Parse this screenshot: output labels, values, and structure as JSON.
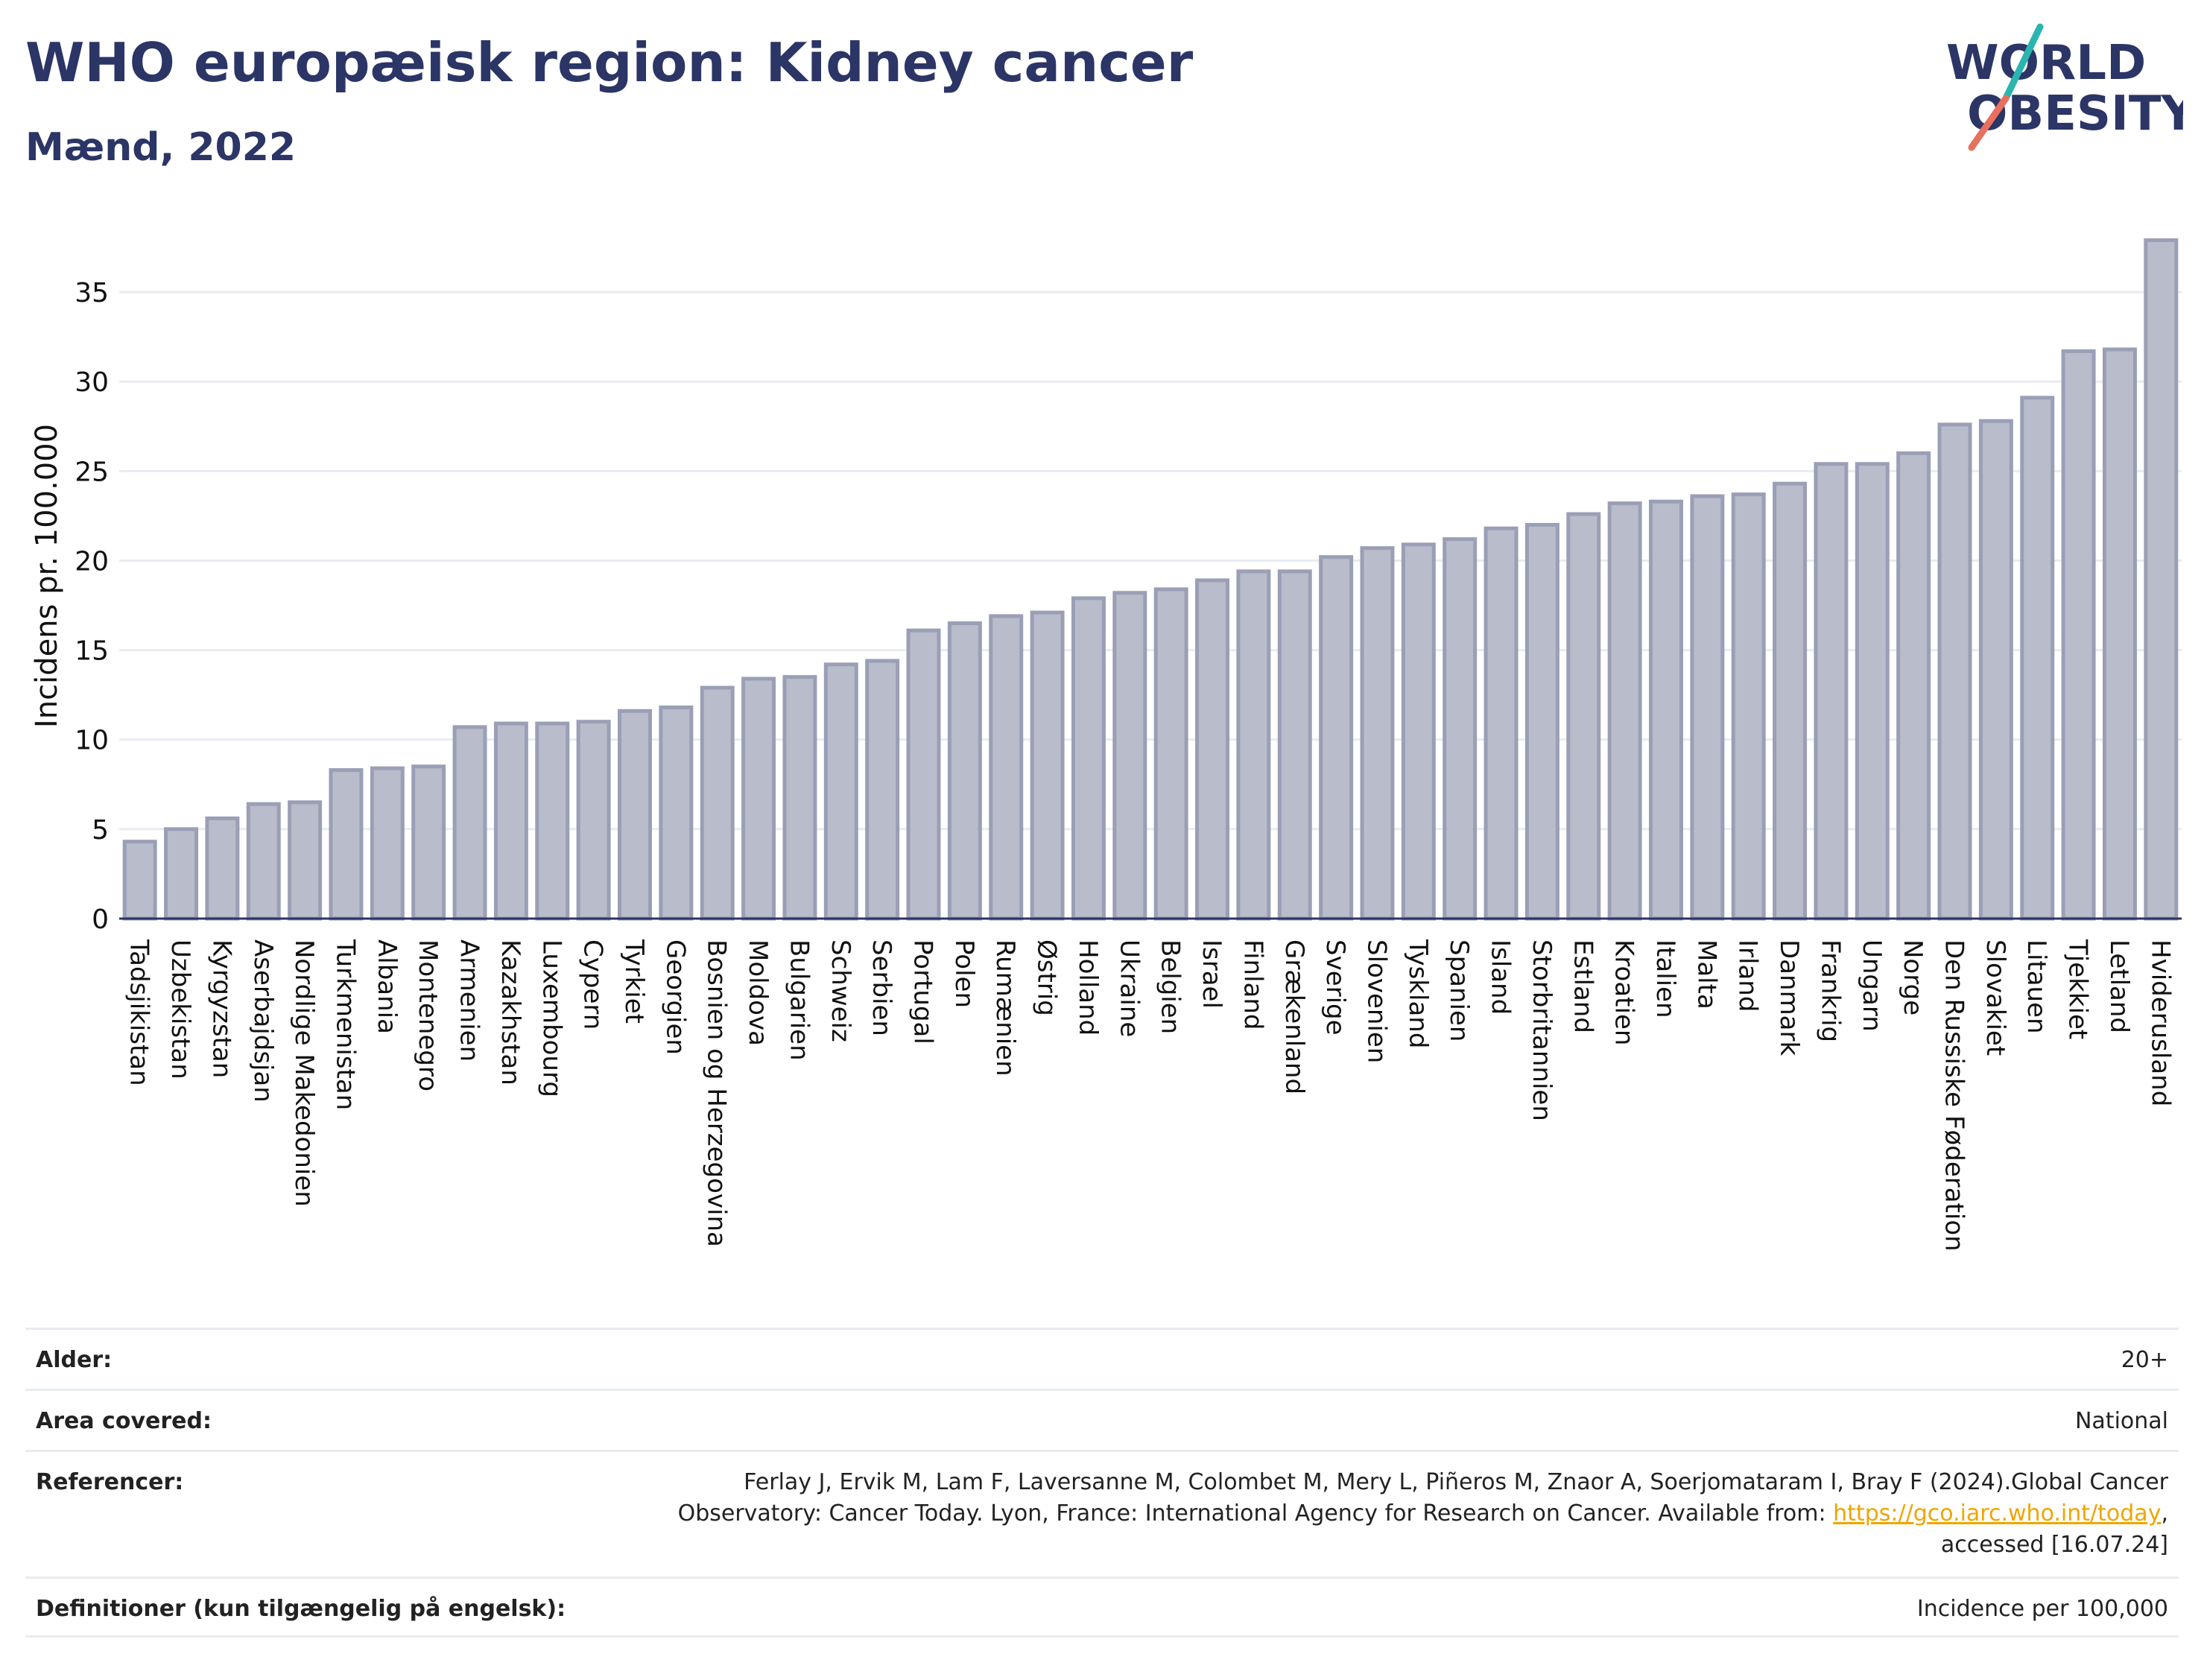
{
  "header": {
    "title": "WHO europæisk region: Kidney cancer",
    "subtitle": "Mænd, 2022"
  },
  "logo": {
    "line1": "WORLD",
    "line2": "OBESITY",
    "text_color": "#2b3566",
    "slash_colors": [
      "#2bb5b0",
      "#e8705f"
    ]
  },
  "colors": {
    "bar_fill": "#b8bccb",
    "bar_stroke": "#9a9fb6",
    "axis": "#2b3566",
    "grid": "#e8ebf1",
    "text": "#111111",
    "link": "#f0a500"
  },
  "chart_data": {
    "type": "bar",
    "ylabel": "Incidens pr. 100.000",
    "xlabel": "",
    "ylim": [
      0,
      38
    ],
    "yticks": [
      0,
      5,
      10,
      15,
      20,
      25,
      30,
      35
    ],
    "grid": true,
    "categories": [
      "Tadsjikistan",
      "Uzbekistan",
      "Kyrgyzstan",
      "Aserbajdsjan",
      "Nordlige Makedonien",
      "Turkmenistan",
      "Albania",
      "Montenegro",
      "Armenien",
      "Kazakhstan",
      "Luxembourg",
      "Cypern",
      "Tyrkiet",
      "Georgien",
      "Bosnien og Herzegovina",
      "Moldova",
      "Bulgarien",
      "Schweiz",
      "Serbien",
      "Portugal",
      "Polen",
      "Rumænien",
      "Østrig",
      "Holland",
      "Ukraine",
      "Belgien",
      "Israel",
      "Finland",
      "Grækenland",
      "Sverige",
      "Slovenien",
      "Tyskland",
      "Spanien",
      "Island",
      "Storbritannien",
      "Estland",
      "Kroatien",
      "Italien",
      "Malta",
      "Irland",
      "Danmark",
      "Frankrig",
      "Ungarn",
      "Norge",
      "Den Russiske Føderation",
      "Slovakiet",
      "Litauen",
      "Tjekkiet",
      "Letland",
      "Hviderusland"
    ],
    "values": [
      4.3,
      5.0,
      5.6,
      6.4,
      6.5,
      8.3,
      8.4,
      8.5,
      10.7,
      10.9,
      10.9,
      11.0,
      11.6,
      11.8,
      12.9,
      13.4,
      13.5,
      14.2,
      14.4,
      16.1,
      16.5,
      16.9,
      17.1,
      17.9,
      18.2,
      18.4,
      18.9,
      19.4,
      19.4,
      20.2,
      20.7,
      20.9,
      21.2,
      21.8,
      22.0,
      22.6,
      23.2,
      23.3,
      23.6,
      23.7,
      24.3,
      25.4,
      25.4,
      26.0,
      27.6,
      27.8,
      29.1,
      31.7,
      31.8,
      37.9
    ]
  },
  "meta": {
    "age_label": "Alder:",
    "age_value": "20+",
    "area_label": "Area covered:",
    "area_value": "National",
    "ref_label": "Referencer:",
    "ref_line1": "Ferlay J, Ervik M, Lam F, Laversanne M, Colombet M, Mery L, Piñeros M, Znaor A, Soerjomataram I, Bray F (2024).Global Cancer",
    "ref_line2_pre": "Observatory: Cancer Today. Lyon, France: International Agency for Research on Cancer. Available from: ",
    "ref_link": "https://gco.iarc.who.int/today",
    "ref_line2_post": ",",
    "ref_line3": "accessed [16.07.24]",
    "def_label": "Definitioner (kun tilgængelig på engelsk):",
    "def_value": "Incidence per 100,000"
  }
}
